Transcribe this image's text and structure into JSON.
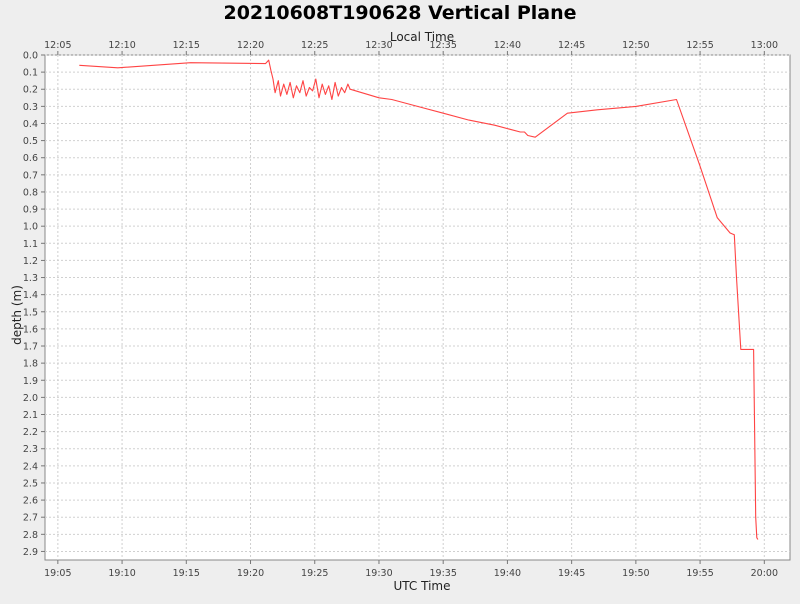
{
  "chart_data": {
    "type": "line",
    "title": "20210608T190628 Vertical Plane",
    "xlabel": "UTC Time",
    "x2label": "Local Time",
    "ylabel": "depth (m)",
    "xlim": [
      "19:04",
      "20:02"
    ],
    "ylim": [
      0.0,
      2.95
    ],
    "y_inverted": true,
    "grid": true,
    "x_ticks": [
      "19:05",
      "19:10",
      "19:15",
      "19:20",
      "19:25",
      "19:30",
      "19:35",
      "19:40",
      "19:45",
      "19:50",
      "19:55",
      "20:00"
    ],
    "x2_ticks": [
      "12:05",
      "12:10",
      "12:15",
      "12:20",
      "12:25",
      "12:30",
      "12:35",
      "12:40",
      "12:45",
      "12:50",
      "12:55",
      "13:00"
    ],
    "y_ticks": [
      "0.0",
      "0.1",
      "0.2",
      "0.3",
      "0.4",
      "0.5",
      "0.6",
      "0.7",
      "0.8",
      "0.9",
      "1.0",
      "1.1",
      "1.2",
      "1.3",
      "1.4",
      "1.5",
      "1.6",
      "1.7",
      "1.8",
      "1.9",
      "2.0",
      "2.1",
      "2.2",
      "2.3",
      "2.4",
      "2.5",
      "2.6",
      "2.7",
      "2.8",
      "2.9"
    ],
    "series": [
      {
        "color": "#ff4444",
        "x": [
          "19:06:40",
          "19:09:40",
          "19:15:20",
          "19:21:10",
          "19:21:25",
          "19:21:35",
          "19:21:45",
          "19:21:55",
          "19:22:10",
          "19:22:20",
          "19:22:35",
          "19:22:50",
          "19:23:05",
          "19:23:20",
          "19:23:35",
          "19:23:50",
          "19:24:05",
          "19:24:20",
          "19:24:35",
          "19:24:50",
          "19:25:05",
          "19:25:20",
          "19:25:35",
          "19:25:50",
          "19:26:05",
          "19:26:20",
          "19:26:35",
          "19:26:50",
          "19:27:05",
          "19:27:20",
          "19:27:35",
          "19:27:45",
          "19:30:00",
          "19:31:00",
          "19:33:00",
          "19:35:00",
          "19:37:00",
          "19:39:00",
          "19:41:00",
          "19:41:20",
          "19:41:35",
          "19:42:10",
          "19:44:40",
          "19:47:00",
          "19:50:00",
          "19:53:10",
          "19:55:00",
          "19:56:20",
          "19:57:20",
          "19:57:40",
          "19:57:50",
          "19:58:10",
          "19:58:30",
          "19:59:10",
          "19:59:20",
          "19:59:25",
          "19:59:30"
        ],
        "y": [
          0.06,
          0.075,
          0.045,
          0.05,
          0.03,
          0.09,
          0.14,
          0.22,
          0.15,
          0.24,
          0.17,
          0.23,
          0.16,
          0.25,
          0.18,
          0.22,
          0.15,
          0.24,
          0.19,
          0.21,
          0.14,
          0.25,
          0.17,
          0.23,
          0.18,
          0.26,
          0.16,
          0.24,
          0.19,
          0.22,
          0.17,
          0.2,
          0.25,
          0.26,
          0.3,
          0.34,
          0.38,
          0.41,
          0.45,
          0.45,
          0.47,
          0.48,
          0.34,
          0.32,
          0.3,
          0.26,
          0.65,
          0.95,
          1.04,
          1.05,
          1.3,
          1.72,
          1.72,
          1.72,
          2.7,
          2.82,
          2.83
        ]
      }
    ]
  }
}
